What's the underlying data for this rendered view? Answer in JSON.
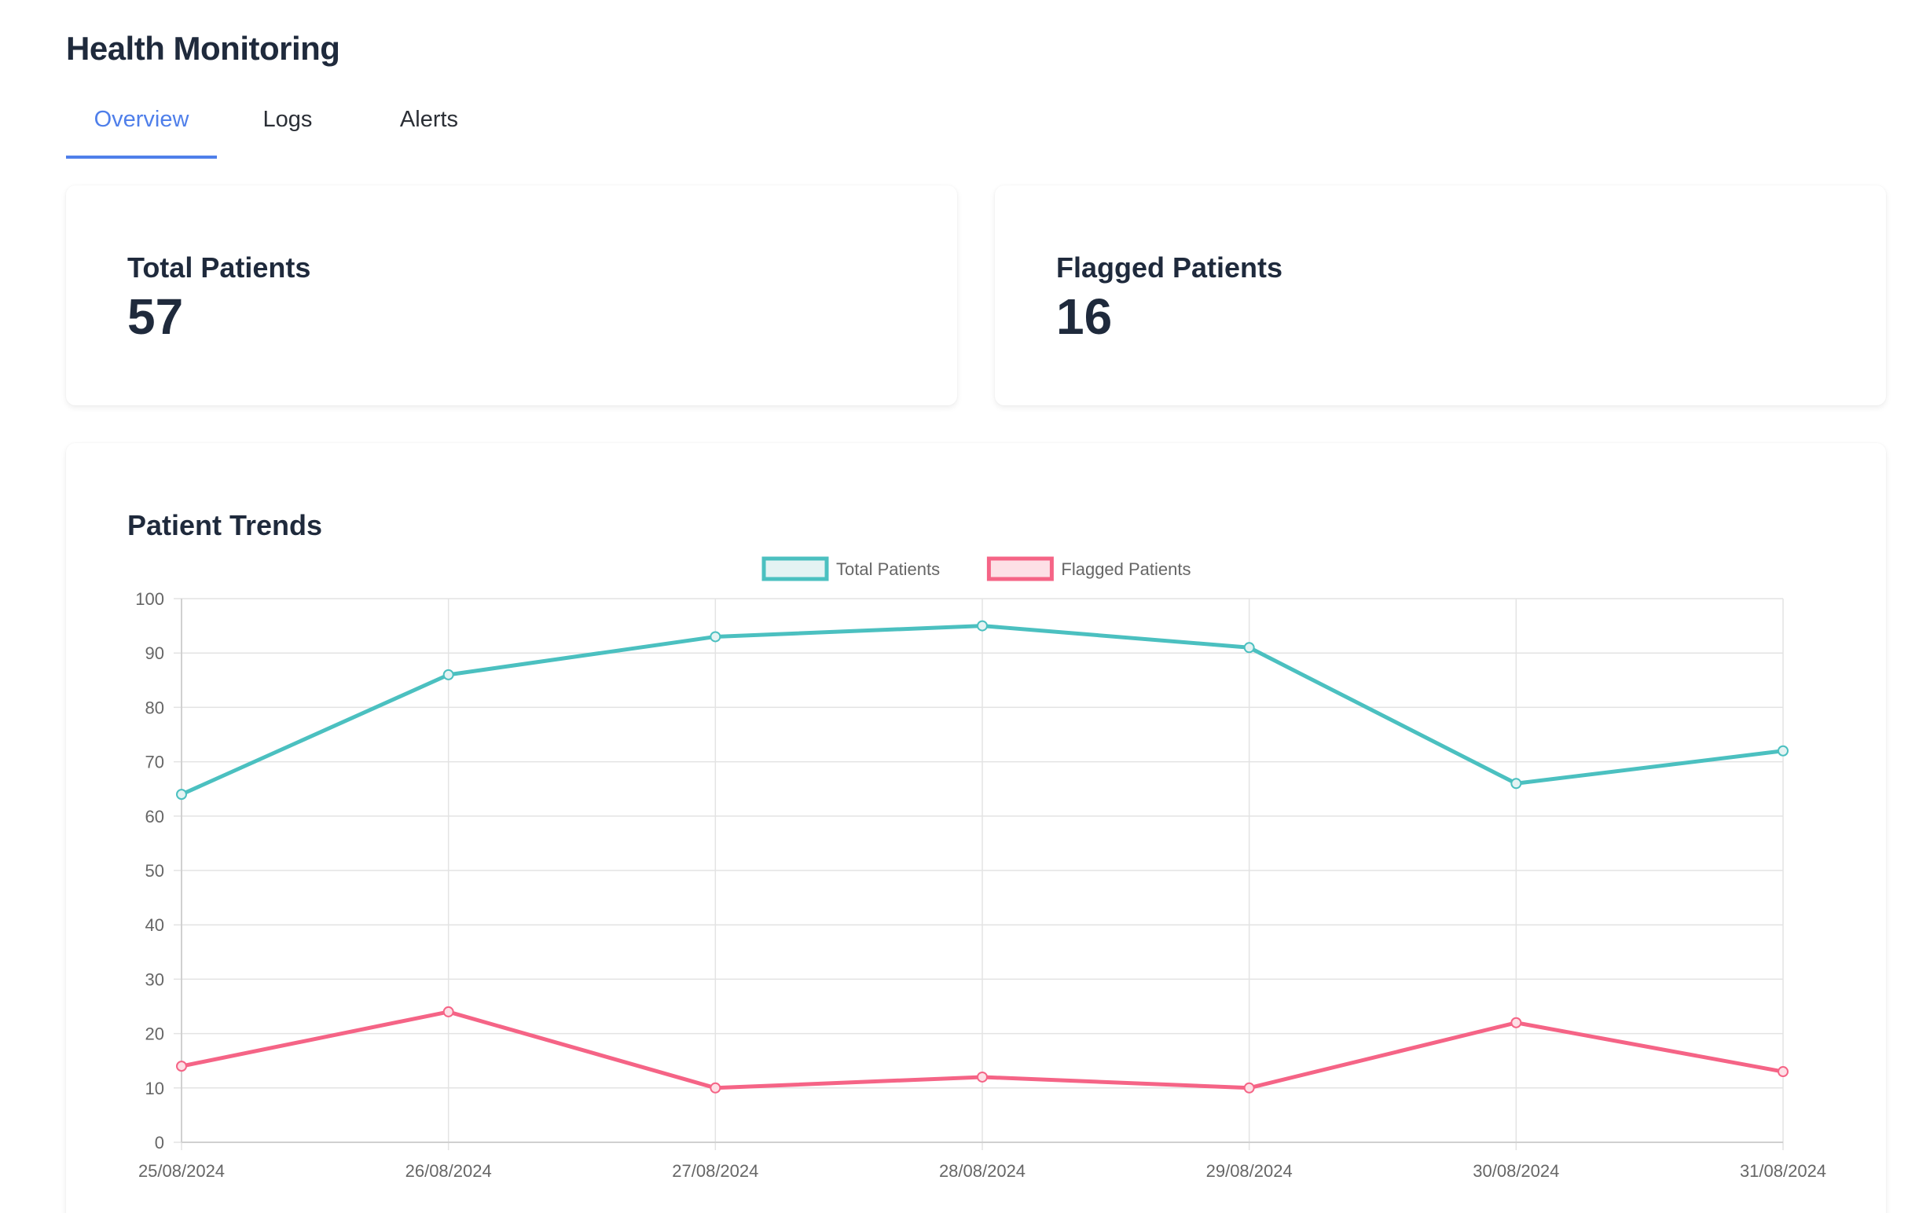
{
  "header": {
    "title": "Health Monitoring"
  },
  "tabs": [
    {
      "label": "Overview",
      "active": true
    },
    {
      "label": "Logs",
      "active": false
    },
    {
      "label": "Alerts",
      "active": false
    }
  ],
  "stats": [
    {
      "label": "Total Patients",
      "value": "57"
    },
    {
      "label": "Flagged Patients",
      "value": "16"
    }
  ],
  "chart": {
    "title": "Patient Trends"
  },
  "chart_data": {
    "type": "line",
    "categories": [
      "25/08/2024",
      "26/08/2024",
      "27/08/2024",
      "28/08/2024",
      "29/08/2024",
      "30/08/2024",
      "31/08/2024"
    ],
    "series": [
      {
        "name": "Total Patients",
        "values": [
          64,
          86,
          93,
          95,
          91,
          66,
          72
        ],
        "color": "#4bc0c0",
        "fill": "#e4f3f3"
      },
      {
        "name": "Flagged Patients",
        "values": [
          14,
          24,
          10,
          12,
          10,
          22,
          13
        ],
        "color": "#f56486",
        "fill": "#fde0e6"
      }
    ],
    "ylim": [
      0,
      100
    ],
    "yticks": [
      0,
      10,
      20,
      30,
      40,
      50,
      60,
      70,
      80,
      90,
      100
    ],
    "grid": true,
    "legend": "top-center"
  }
}
